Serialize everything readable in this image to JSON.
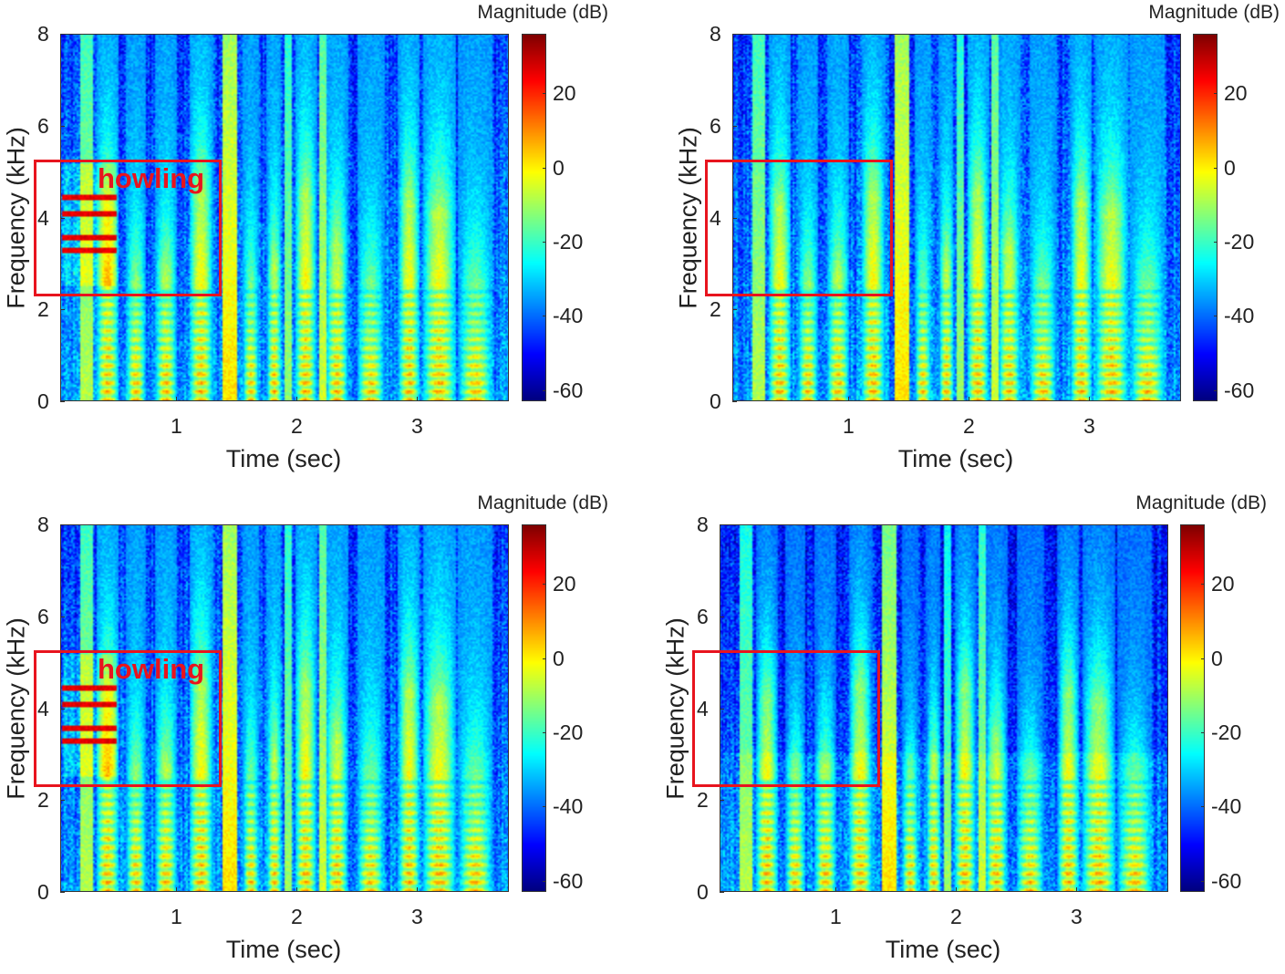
{
  "chart_data": [
    {
      "type": "heatmap",
      "subtype": "spectrogram",
      "xlabel": "Time (sec)",
      "ylabel": "Frequency (kHz)",
      "xlim": [
        0.04,
        3.77
      ],
      "ylim": [
        0,
        8
      ],
      "xticks": [
        "1",
        "2",
        "3"
      ],
      "yticks": [
        "0",
        "2",
        "4",
        "6",
        "8"
      ],
      "colorbar": {
        "label": "Magnitude (dB)",
        "ticks": [
          "20",
          "0",
          "-20",
          "-40",
          "-60"
        ],
        "range": [
          -63,
          36
        ],
        "colormap": "jet"
      },
      "highlight_box": {
        "t_range": [
          -0.18,
          1.37
        ],
        "f_range_khz": [
          2.28,
          5.26
        ],
        "color": "#e8141e",
        "label": "howling"
      },
      "howling": true
    },
    {
      "type": "heatmap",
      "subtype": "spectrogram",
      "xlabel": "Time (sec)",
      "ylabel": "Frequency (kHz)",
      "xlim": [
        0.04,
        3.77
      ],
      "ylim": [
        0,
        8
      ],
      "xticks": [
        "1",
        "2",
        "3"
      ],
      "yticks": [
        "0",
        "2",
        "4",
        "6",
        "8"
      ],
      "colorbar": {
        "label": "Magnitude (dB)",
        "ticks": [
          "20",
          "0",
          "-20",
          "-40",
          "-60"
        ],
        "range": [
          -63,
          36
        ],
        "colormap": "jet"
      },
      "highlight_box": {
        "t_range": [
          -0.18,
          1.37
        ],
        "f_range_khz": [
          2.28,
          5.26
        ],
        "color": "#e8141e",
        "label": ""
      },
      "howling": false
    },
    {
      "type": "heatmap",
      "subtype": "spectrogram",
      "xlabel": "Time (sec)",
      "ylabel": "Frequency (kHz)",
      "xlim": [
        0.04,
        3.77
      ],
      "ylim": [
        0,
        8
      ],
      "xticks": [
        "1",
        "2",
        "3"
      ],
      "yticks": [
        "0",
        "2",
        "4",
        "6",
        "8"
      ],
      "colorbar": {
        "label": "Magnitude (dB)",
        "ticks": [
          "20",
          "0",
          "-20",
          "-40",
          "-60"
        ],
        "range": [
          -63,
          36
        ],
        "colormap": "jet"
      },
      "highlight_box": {
        "t_range": [
          -0.18,
          1.37
        ],
        "f_range_khz": [
          2.28,
          5.26
        ],
        "color": "#e8141e",
        "label": "howling"
      },
      "howling": true
    },
    {
      "type": "heatmap",
      "subtype": "spectrogram",
      "xlabel": "Time (sec)",
      "ylabel": "Frequency (kHz)",
      "xlim": [
        0.04,
        3.77
      ],
      "ylim": [
        0,
        8
      ],
      "xticks": [
        "1",
        "2",
        "3"
      ],
      "yticks": [
        "0",
        "2",
        "4",
        "6",
        "8"
      ],
      "colorbar": {
        "label": "Magnitude (dB)",
        "ticks": [
          "20",
          "0",
          "-20",
          "-40",
          "-60"
        ],
        "range": [
          -63,
          36
        ],
        "colormap": "jet"
      },
      "highlight_box": {
        "t_range": [
          -0.18,
          1.37
        ],
        "f_range_khz": [
          2.28,
          5.26
        ],
        "color": "#e8141e",
        "label": ""
      },
      "howling": false
    }
  ],
  "voiced_segments_sec": [
    [
      0.33,
      0.52
    ],
    [
      0.58,
      0.74
    ],
    [
      0.82,
      1.0
    ],
    [
      1.1,
      1.3
    ],
    [
      1.55,
      1.68
    ],
    [
      1.75,
      1.87
    ],
    [
      1.98,
      2.16
    ],
    [
      2.24,
      2.42
    ],
    [
      2.5,
      2.72
    ],
    [
      2.84,
      3.02
    ],
    [
      3.04,
      3.32
    ],
    [
      3.34,
      3.62
    ]
  ]
}
